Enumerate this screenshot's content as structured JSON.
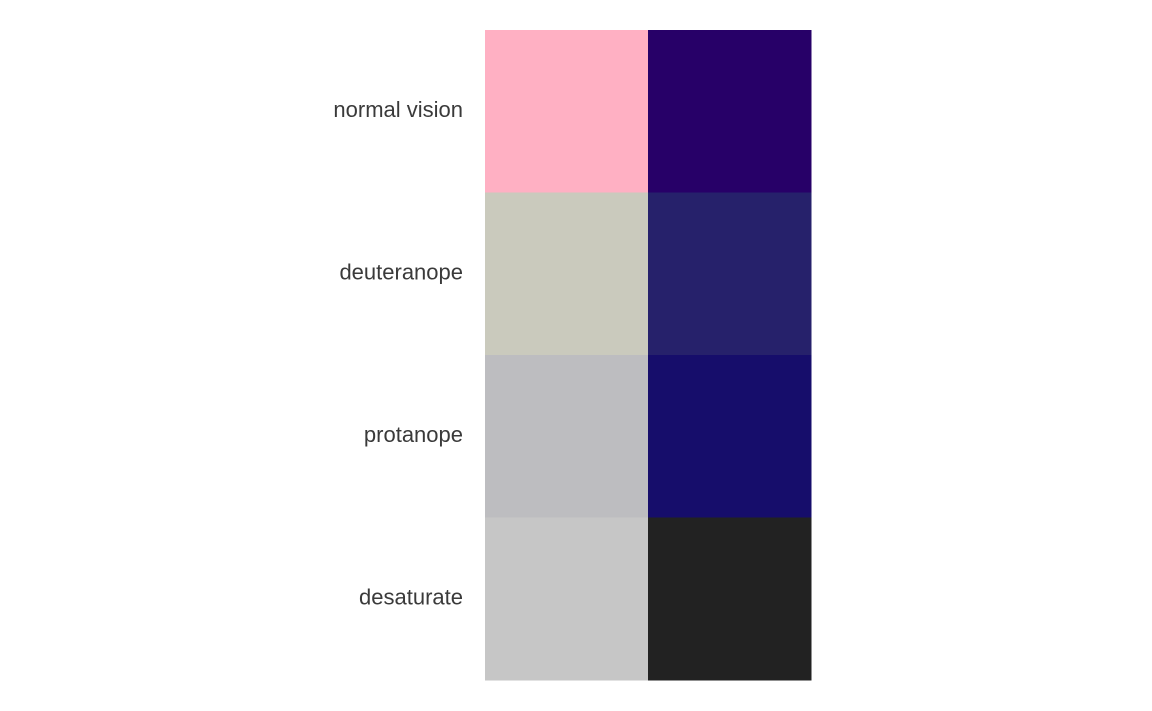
{
  "chart_data": {
    "type": "heatmap",
    "title": "",
    "xlabel": "",
    "ylabel": "",
    "rows": [
      "normal vision",
      "deuteranope",
      "protanope",
      "desaturate"
    ],
    "columns": [
      "",
      ""
    ],
    "colors": [
      [
        "#FFB0C3",
        "#270068"
      ],
      [
        "#CACABD",
        "#26216B"
      ],
      [
        "#BDBDC0",
        "#160D6B"
      ],
      [
        "#C6C6C6",
        "#222222"
      ]
    ],
    "grid": false,
    "legend": "none"
  }
}
